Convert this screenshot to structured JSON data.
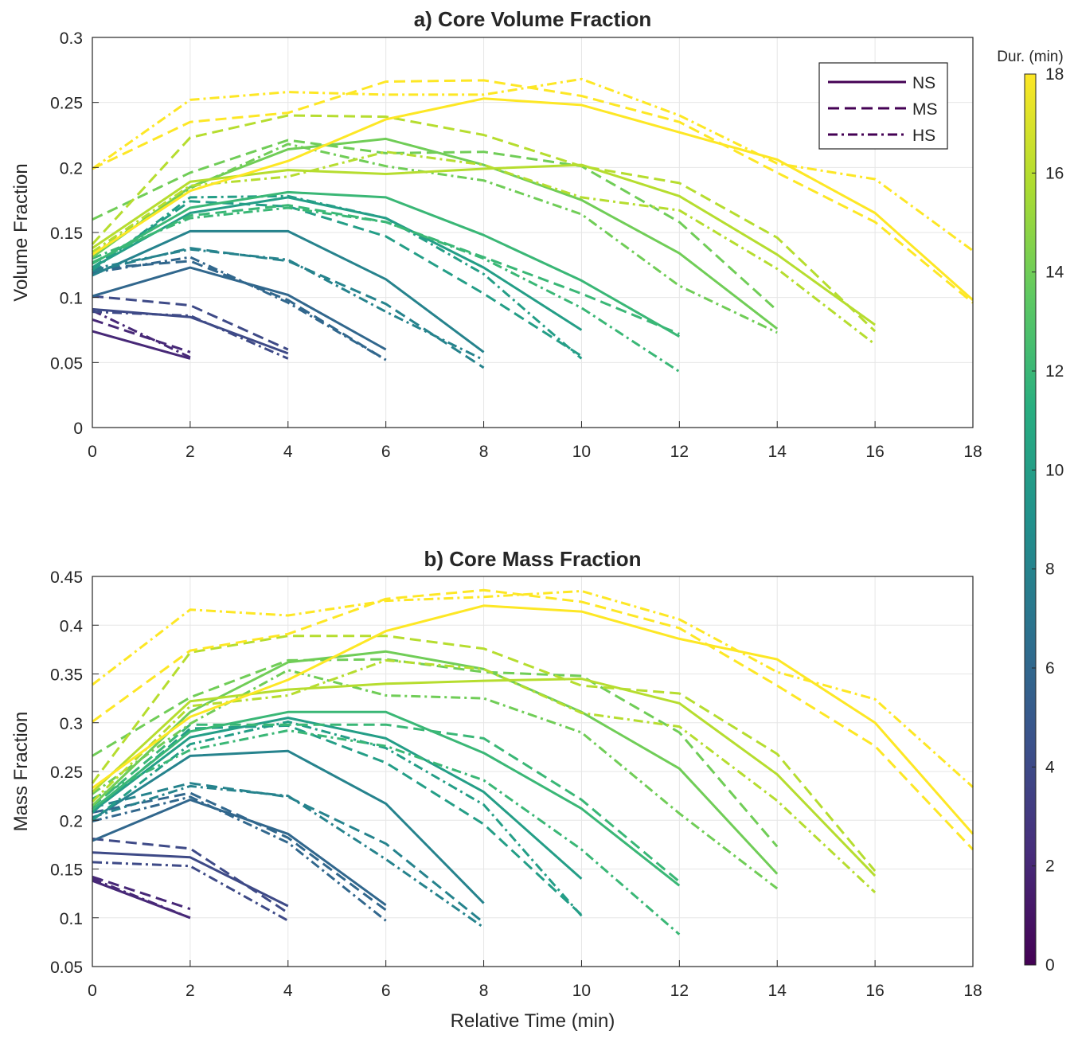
{
  "chart_data": [
    {
      "type": "line",
      "title": "a) Core Volume Fraction",
      "xlabel": "",
      "ylabel": "Volume Fraction",
      "xlim": [
        0,
        18
      ],
      "ylim": [
        0,
        0.3
      ],
      "xticks": [
        "0",
        "2",
        "4",
        "6",
        "8",
        "10",
        "12",
        "14",
        "16",
        "18"
      ],
      "yticks": [
        "0",
        "0.05",
        "0.1",
        "0.15",
        "0.2",
        "0.25",
        "0.3"
      ],
      "grid": true,
      "legend": {
        "position": "top-right",
        "entries": [
          "NS",
          "MS",
          "HS"
        ]
      },
      "series": [
        {
          "name": "NS",
          "duration": 2,
          "x": [
            0,
            2
          ],
          "y": [
            0.074,
            0.053
          ]
        },
        {
          "name": "MS",
          "duration": 2,
          "x": [
            0,
            2
          ],
          "y": [
            0.083,
            0.058
          ]
        },
        {
          "name": "HS",
          "duration": 2,
          "x": [
            0,
            2
          ],
          "y": [
            0.09,
            0.054
          ]
        },
        {
          "name": "NS",
          "duration": 4,
          "x": [
            0,
            2,
            4
          ],
          "y": [
            0.091,
            0.085,
            0.057
          ]
        },
        {
          "name": "MS",
          "duration": 4,
          "x": [
            0,
            2,
            4
          ],
          "y": [
            0.101,
            0.094,
            0.06
          ]
        },
        {
          "name": "HS",
          "duration": 4,
          "x": [
            0,
            2,
            4
          ],
          "y": [
            0.089,
            0.086,
            0.053
          ]
        },
        {
          "name": "NS",
          "duration": 6,
          "x": [
            0,
            2,
            4,
            6
          ],
          "y": [
            0.101,
            0.123,
            0.102,
            0.06
          ]
        },
        {
          "name": "MS",
          "duration": 6,
          "x": [
            0,
            2,
            4,
            6
          ],
          "y": [
            0.122,
            0.128,
            0.098,
            0.052
          ]
        },
        {
          "name": "HS",
          "duration": 6,
          "x": [
            0,
            2,
            4,
            6
          ],
          "y": [
            0.119,
            0.131,
            0.096,
            0.052
          ]
        },
        {
          "name": "NS",
          "duration": 8,
          "x": [
            0,
            2,
            4,
            6,
            8
          ],
          "y": [
            0.117,
            0.151,
            0.151,
            0.114,
            0.058
          ]
        },
        {
          "name": "MS",
          "duration": 8,
          "x": [
            0,
            2,
            4,
            6,
            8
          ],
          "y": [
            0.12,
            0.138,
            0.128,
            0.095,
            0.046
          ]
        },
        {
          "name": "HS",
          "duration": 8,
          "x": [
            0,
            2,
            4,
            6,
            8
          ],
          "y": [
            0.122,
            0.137,
            0.129,
            0.089,
            0.052
          ]
        },
        {
          "name": "NS",
          "duration": 10,
          "x": [
            0,
            2,
            4,
            6,
            8,
            10
          ],
          "y": [
            0.123,
            0.165,
            0.177,
            0.161,
            0.123,
            0.075
          ]
        },
        {
          "name": "MS",
          "duration": 10,
          "x": [
            0,
            2,
            4,
            6,
            8,
            10
          ],
          "y": [
            0.123,
            0.174,
            0.17,
            0.147,
            0.103,
            0.055
          ]
        },
        {
          "name": "HS",
          "duration": 10,
          "x": [
            0,
            2,
            4,
            6,
            8,
            10
          ],
          "y": [
            0.121,
            0.177,
            0.178,
            0.161,
            0.118,
            0.053
          ]
        },
        {
          "name": "NS",
          "duration": 12,
          "x": [
            0,
            2,
            4,
            6,
            8,
            10,
            12
          ],
          "y": [
            0.126,
            0.169,
            0.181,
            0.177,
            0.148,
            0.113,
            0.07
          ]
        },
        {
          "name": "MS",
          "duration": 12,
          "x": [
            0,
            2,
            4,
            6,
            8,
            10,
            12
          ],
          "y": [
            0.127,
            0.163,
            0.171,
            0.158,
            0.131,
            0.103,
            0.072
          ]
        },
        {
          "name": "HS",
          "duration": 12,
          "x": [
            0,
            2,
            4,
            6,
            8,
            10,
            12
          ],
          "y": [
            0.13,
            0.161,
            0.169,
            0.158,
            0.13,
            0.092,
            0.043
          ]
        },
        {
          "name": "NS",
          "duration": 14,
          "x": [
            0,
            2,
            4,
            6,
            8,
            10,
            12,
            14
          ],
          "y": [
            0.131,
            0.185,
            0.214,
            0.222,
            0.202,
            0.175,
            0.134,
            0.076
          ]
        },
        {
          "name": "MS",
          "duration": 14,
          "x": [
            0,
            2,
            4,
            6,
            8,
            10,
            12,
            14
          ],
          "y": [
            0.16,
            0.196,
            0.221,
            0.211,
            0.212,
            0.201,
            0.158,
            0.09
          ]
        },
        {
          "name": "HS",
          "duration": 14,
          "x": [
            0,
            2,
            4,
            6,
            8,
            10,
            12,
            14
          ],
          "y": [
            0.133,
            0.184,
            0.218,
            0.201,
            0.19,
            0.164,
            0.109,
            0.073
          ]
        },
        {
          "name": "NS",
          "duration": 16,
          "x": [
            0,
            2,
            4,
            6,
            8,
            10,
            12,
            14,
            16
          ],
          "y": [
            0.138,
            0.189,
            0.198,
            0.195,
            0.199,
            0.202,
            0.178,
            0.133,
            0.079
          ]
        },
        {
          "name": "MS",
          "duration": 16,
          "x": [
            0,
            2,
            4,
            6,
            8,
            10,
            12,
            14,
            16
          ],
          "y": [
            0.141,
            0.223,
            0.24,
            0.239,
            0.225,
            0.201,
            0.188,
            0.146,
            0.074
          ]
        },
        {
          "name": "HS",
          "duration": 16,
          "x": [
            0,
            2,
            4,
            6,
            8,
            10,
            12,
            14,
            16
          ],
          "y": [
            0.135,
            0.186,
            0.193,
            0.212,
            0.202,
            0.177,
            0.167,
            0.122,
            0.064
          ]
        },
        {
          "name": "NS",
          "duration": 18,
          "x": [
            0,
            2,
            4,
            6,
            8,
            10,
            12,
            14,
            16,
            18
          ],
          "y": [
            0.133,
            0.182,
            0.205,
            0.237,
            0.253,
            0.248,
            0.227,
            0.206,
            0.165,
            0.098
          ]
        },
        {
          "name": "MS",
          "duration": 18,
          "x": [
            0,
            2,
            4,
            6,
            8,
            10,
            12,
            14,
            16,
            18
          ],
          "y": [
            0.199,
            0.235,
            0.242,
            0.266,
            0.267,
            0.255,
            0.235,
            0.196,
            0.158,
            0.096
          ]
        },
        {
          "name": "HS",
          "duration": 18,
          "x": [
            0,
            2,
            4,
            6,
            8,
            10,
            12,
            14,
            16,
            18
          ],
          "y": [
            0.199,
            0.252,
            0.258,
            0.256,
            0.256,
            0.268,
            0.24,
            0.203,
            0.191,
            0.136
          ]
        }
      ]
    },
    {
      "type": "line",
      "title": "b) Core Mass Fraction",
      "xlabel": "Relative Time (min)",
      "ylabel": "Mass Fraction",
      "xlim": [
        0,
        18
      ],
      "ylim": [
        0.05,
        0.45
      ],
      "xticks": [
        "0",
        "2",
        "4",
        "6",
        "8",
        "10",
        "12",
        "14",
        "16",
        "18"
      ],
      "yticks": [
        "0.05",
        "0.1",
        "0.15",
        "0.2",
        "0.25",
        "0.3",
        "0.35",
        "0.4",
        "0.45"
      ],
      "grid": true,
      "series": [
        {
          "name": "NS",
          "duration": 2,
          "x": [
            0,
            2
          ],
          "y": [
            0.138,
            0.1
          ]
        },
        {
          "name": "MS",
          "duration": 2,
          "x": [
            0,
            2
          ],
          "y": [
            0.142,
            0.109
          ]
        },
        {
          "name": "HS",
          "duration": 2,
          "x": [
            0,
            2
          ],
          "y": [
            0.14,
            0.1
          ]
        },
        {
          "name": "NS",
          "duration": 4,
          "x": [
            0,
            2,
            4
          ],
          "y": [
            0.167,
            0.162,
            0.112
          ]
        },
        {
          "name": "MS",
          "duration": 4,
          "x": [
            0,
            2,
            4
          ],
          "y": [
            0.181,
            0.171,
            0.105
          ]
        },
        {
          "name": "HS",
          "duration": 4,
          "x": [
            0,
            2,
            4
          ],
          "y": [
            0.157,
            0.153,
            0.097
          ]
        },
        {
          "name": "NS",
          "duration": 6,
          "x": [
            0,
            2,
            4,
            6
          ],
          "y": [
            0.179,
            0.221,
            0.186,
            0.113
          ]
        },
        {
          "name": "MS",
          "duration": 6,
          "x": [
            0,
            2,
            4,
            6
          ],
          "y": [
            0.208,
            0.228,
            0.182,
            0.108
          ]
        },
        {
          "name": "HS",
          "duration": 6,
          "x": [
            0,
            2,
            4,
            6
          ],
          "y": [
            0.199,
            0.224,
            0.177,
            0.097
          ]
        },
        {
          "name": "NS",
          "duration": 8,
          "x": [
            0,
            2,
            4,
            6,
            8
          ],
          "y": [
            0.201,
            0.266,
            0.271,
            0.217,
            0.115
          ]
        },
        {
          "name": "MS",
          "duration": 8,
          "x": [
            0,
            2,
            4,
            6,
            8
          ],
          "y": [
            0.213,
            0.238,
            0.224,
            0.176,
            0.095
          ]
        },
        {
          "name": "HS",
          "duration": 8,
          "x": [
            0,
            2,
            4,
            6,
            8
          ],
          "y": [
            0.203,
            0.235,
            0.225,
            0.16,
            0.09
          ]
        },
        {
          "name": "NS",
          "duration": 10,
          "x": [
            0,
            2,
            4,
            6,
            8,
            10
          ],
          "y": [
            0.209,
            0.285,
            0.305,
            0.284,
            0.229,
            0.14
          ]
        },
        {
          "name": "MS",
          "duration": 10,
          "x": [
            0,
            2,
            4,
            6,
            8,
            10
          ],
          "y": [
            0.208,
            0.294,
            0.297,
            0.259,
            0.196,
            0.103
          ]
        },
        {
          "name": "HS",
          "duration": 10,
          "x": [
            0,
            2,
            4,
            6,
            8,
            10
          ],
          "y": [
            0.2,
            0.278,
            0.301,
            0.274,
            0.216,
            0.102
          ]
        },
        {
          "name": "NS",
          "duration": 12,
          "x": [
            0,
            2,
            4,
            6,
            8,
            10,
            12
          ],
          "y": [
            0.211,
            0.291,
            0.311,
            0.311,
            0.269,
            0.212,
            0.133
          ]
        },
        {
          "name": "MS",
          "duration": 12,
          "x": [
            0,
            2,
            4,
            6,
            8,
            10,
            12
          ],
          "y": [
            0.214,
            0.298,
            0.298,
            0.298,
            0.284,
            0.221,
            0.137
          ]
        },
        {
          "name": "HS",
          "duration": 12,
          "x": [
            0,
            2,
            4,
            6,
            8,
            10,
            12
          ],
          "y": [
            0.222,
            0.272,
            0.292,
            0.276,
            0.241,
            0.17,
            0.083
          ]
        },
        {
          "name": "NS",
          "duration": 14,
          "x": [
            0,
            2,
            4,
            6,
            8,
            10,
            12,
            14
          ],
          "y": [
            0.215,
            0.311,
            0.362,
            0.373,
            0.355,
            0.311,
            0.253,
            0.145
          ]
        },
        {
          "name": "MS",
          "duration": 14,
          "x": [
            0,
            2,
            4,
            6,
            8,
            10,
            12,
            14
          ],
          "y": [
            0.266,
            0.326,
            0.364,
            0.365,
            0.352,
            0.348,
            0.29,
            0.173
          ]
        },
        {
          "name": "HS",
          "duration": 14,
          "x": [
            0,
            2,
            4,
            6,
            8,
            10,
            12,
            14
          ],
          "y": [
            0.227,
            0.299,
            0.354,
            0.328,
            0.325,
            0.29,
            0.207,
            0.13
          ]
        },
        {
          "name": "NS",
          "duration": 16,
          "x": [
            0,
            2,
            4,
            6,
            8,
            10,
            12,
            14,
            16
          ],
          "y": [
            0.229,
            0.322,
            0.334,
            0.34,
            0.343,
            0.345,
            0.32,
            0.247,
            0.143
          ]
        },
        {
          "name": "MS",
          "duration": 16,
          "x": [
            0,
            2,
            4,
            6,
            8,
            10,
            12,
            14,
            16
          ],
          "y": [
            0.238,
            0.372,
            0.389,
            0.389,
            0.376,
            0.338,
            0.33,
            0.268,
            0.148
          ]
        },
        {
          "name": "HS",
          "duration": 16,
          "x": [
            0,
            2,
            4,
            6,
            8,
            10,
            12,
            14,
            16
          ],
          "y": [
            0.219,
            0.317,
            0.328,
            0.364,
            0.355,
            0.31,
            0.296,
            0.22,
            0.126
          ]
        },
        {
          "name": "NS",
          "duration": 18,
          "x": [
            0,
            2,
            4,
            6,
            8,
            10,
            12,
            14,
            16,
            18
          ],
          "y": [
            0.233,
            0.306,
            0.344,
            0.394,
            0.42,
            0.414,
            0.386,
            0.365,
            0.3,
            0.186
          ]
        },
        {
          "name": "MS",
          "duration": 18,
          "x": [
            0,
            2,
            4,
            6,
            8,
            10,
            12,
            14,
            16,
            18
          ],
          "y": [
            0.301,
            0.374,
            0.391,
            0.427,
            0.436,
            0.424,
            0.397,
            0.338,
            0.276,
            0.17
          ]
        },
        {
          "name": "HS",
          "duration": 18,
          "x": [
            0,
            2,
            4,
            6,
            8,
            10,
            12,
            14,
            16,
            18
          ],
          "y": [
            0.339,
            0.416,
            0.41,
            0.425,
            0.429,
            0.435,
            0.406,
            0.352,
            0.324,
            0.234
          ]
        }
      ]
    }
  ],
  "colorbar": {
    "label": "Dur. (min)",
    "range": [
      0,
      18
    ],
    "ticks": [
      "0",
      "2",
      "4",
      "6",
      "8",
      "10",
      "12",
      "14",
      "16",
      "18"
    ],
    "colormap": "viridis",
    "colors": [
      "#440154",
      "#472d7b",
      "#3b528b",
      "#2c728e",
      "#21918c",
      "#28ae80",
      "#5ec962",
      "#addc30",
      "#fde725"
    ]
  },
  "style_map": {
    "NS": "solid",
    "MS": "dashed",
    "HS": "dashdot"
  },
  "legend_line_color": "#440154"
}
